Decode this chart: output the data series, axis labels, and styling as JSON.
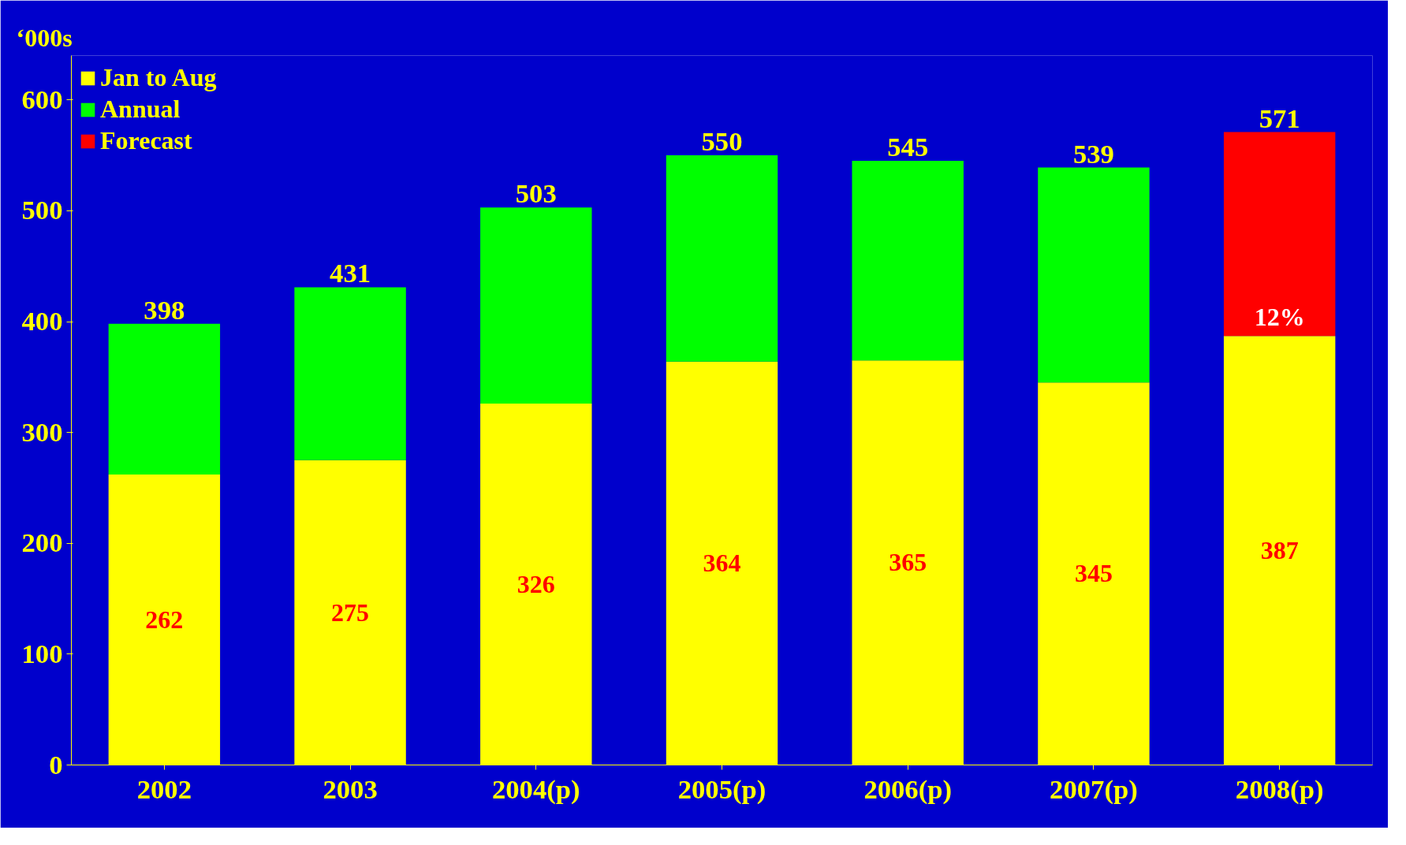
{
  "chart_data": {
    "type": "bar",
    "stacked": true,
    "ylabel": "‘000s",
    "categories": [
      "2002",
      "2003",
      "2004(p)",
      "2005(p)",
      "2006(p)",
      "2007(p)",
      "2008(p)"
    ],
    "series": [
      {
        "name": "Jan to Aug",
        "color": "#ffff00",
        "values": [
          262,
          275,
          326,
          364,
          365,
          345,
          387
        ],
        "value_labels": [
          "262",
          "275",
          "326",
          "364",
          "365",
          "345",
          "387"
        ]
      },
      {
        "name": "Annual",
        "color": "#00ff00",
        "values": [
          136,
          156,
          177,
          186,
          180,
          194,
          null
        ]
      },
      {
        "name": "Forecast",
        "color": "#ff0000",
        "values": [
          null,
          null,
          null,
          null,
          null,
          null,
          184
        ]
      }
    ],
    "annotations": [
      "12%"
    ],
    "totals": [
      "398",
      "431",
      "503",
      "550",
      "545",
      "539",
      "571"
    ],
    "ylim": [
      0,
      640
    ],
    "yticks": [
      0,
      100,
      200,
      300,
      400,
      500,
      600
    ],
    "grid": false,
    "legend": "top left"
  }
}
